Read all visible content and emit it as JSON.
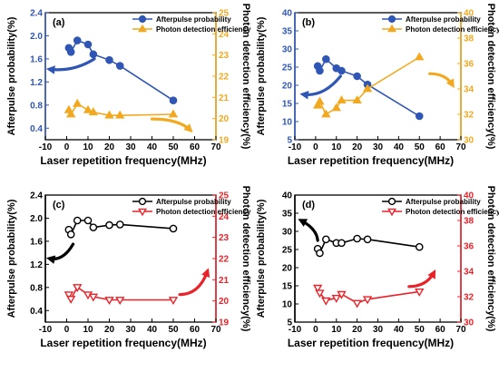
{
  "chart_data": [
    {
      "type": "line",
      "panel_label": "(a)",
      "xlabel": "Laser  repetition frequency(MHz)",
      "xlim": [
        -10,
        70
      ],
      "xticks": [
        "-10",
        "0",
        "10",
        "20",
        "30",
        "40",
        "50",
        "60",
        "70"
      ],
      "left_axis": {
        "label": "Afterpulse probability(%)",
        "lim": [
          0.2,
          2.4
        ],
        "ticks": [
          "0.4",
          "0.8",
          "1.2",
          "1.6",
          "2.0",
          "2.4"
        ],
        "color": "#2f56b5"
      },
      "right_axis": {
        "label": "Photon detection efficiency(%)",
        "lim": [
          19,
          25
        ],
        "ticks": [
          "19",
          "20",
          "21",
          "22",
          "23",
          "24",
          "25"
        ],
        "color": "#f2a91f"
      },
      "series": [
        {
          "name": "Afterpulse probability",
          "axis": "left",
          "marker": "circle",
          "filled": true,
          "color": "#2f56b5",
          "x": [
            1,
            2,
            5,
            10,
            12.5,
            20,
            25,
            50
          ],
          "y": [
            1.79,
            1.72,
            1.92,
            1.85,
            1.68,
            1.58,
            1.48,
            0.88
          ]
        },
        {
          "name": "Photon detection efficiency",
          "axis": "right",
          "marker": "triangle-up",
          "filled": true,
          "color": "#f2a91f",
          "x": [
            1,
            2,
            5,
            10,
            12.5,
            20,
            25,
            50
          ],
          "y": [
            20.4,
            20.2,
            20.7,
            20.4,
            20.3,
            20.15,
            20.15,
            20.2
          ]
        }
      ],
      "annotations": [
        {
          "type": "curved-arrow",
          "direction": "left",
          "color": "#2f56b5",
          "from": [
            13,
            1.6
          ],
          "to": [
            -8,
            1.42
          ]
        },
        {
          "type": "curved-arrow",
          "direction": "right",
          "color": "#f2a91f",
          "from": [
            40,
            19.98
          ],
          "to": [
            58,
            19.45
          ]
        }
      ],
      "grid": false,
      "legend": "top-right"
    },
    {
      "type": "line",
      "panel_label": "(b)",
      "xlabel": "Laser  repetition frequency(MHz)",
      "xlim": [
        -10,
        70
      ],
      "xticks": [
        "-10",
        "0",
        "10",
        "20",
        "30",
        "40",
        "50",
        "60",
        "70"
      ],
      "left_axis": {
        "label": "Afterpulse probability(%)",
        "lim": [
          5,
          40
        ],
        "ticks": [
          "5",
          "10",
          "15",
          "20",
          "25",
          "30",
          "35",
          "40"
        ],
        "color": "#2f56b5"
      },
      "right_axis": {
        "label": "Photon detection efficiency(%)",
        "lim": [
          30,
          40
        ],
        "ticks": [
          "30",
          "32",
          "34",
          "36",
          "38",
          "40"
        ],
        "color": "#f2a91f"
      },
      "series": [
        {
          "name": "Afterpulse probability",
          "axis": "left",
          "marker": "circle",
          "filled": true,
          "color": "#2f56b5",
          "x": [
            1,
            2,
            5,
            10,
            12.5,
            20,
            25,
            50
          ],
          "y": [
            25.3,
            24,
            27.2,
            24.7,
            24,
            22.5,
            20.2,
            11.5
          ]
        },
        {
          "name": "Photon detection efficiency",
          "axis": "right",
          "marker": "triangle-up",
          "filled": true,
          "color": "#f2a91f",
          "x": [
            1,
            2,
            5,
            10,
            12.5,
            20,
            25,
            50
          ],
          "y": [
            32.7,
            33,
            32,
            32.5,
            33.1,
            33.1,
            34,
            36.5
          ]
        }
      ],
      "annotations": [
        {
          "type": "curved-arrow",
          "direction": "left",
          "color": "#2f56b5",
          "from": [
            12,
            22.5
          ],
          "to": [
            -6,
            17.5
          ]
        },
        {
          "type": "curved-arrow",
          "direction": "right",
          "color": "#f2a91f",
          "from": [
            55,
            35.2
          ],
          "to": [
            66,
            34.3
          ]
        }
      ],
      "grid": false,
      "legend": "top-right"
    },
    {
      "type": "line",
      "panel_label": "(c)",
      "xlabel": "Laser  repetition frequency(MHz)",
      "xlim": [
        -10,
        70
      ],
      "xticks": [
        "-10",
        "0",
        "10",
        "20",
        "30",
        "40",
        "50",
        "60",
        "70"
      ],
      "left_axis": {
        "label": "Afterpulse probability(%)",
        "lim": [
          0.2,
          2.4
        ],
        "ticks": [
          "0.4",
          "0.8",
          "1.2",
          "1.6",
          "2.0",
          "2.4"
        ],
        "color": "#000000"
      },
      "right_axis": {
        "label": "Photon detection efficiency(%)",
        "lim": [
          19,
          25
        ],
        "ticks": [
          "19",
          "20",
          "21",
          "22",
          "23",
          "24",
          "25"
        ],
        "color": "#e8232a"
      },
      "series": [
        {
          "name": "Afterpulse probability",
          "axis": "left",
          "marker": "circle",
          "filled": false,
          "color": "#000000",
          "x": [
            1,
            2,
            5,
            10,
            12.5,
            20,
            25,
            50
          ],
          "y": [
            1.8,
            1.72,
            1.96,
            1.96,
            1.84,
            1.88,
            1.89,
            1.82
          ]
        },
        {
          "name": "Photon detection efficiency",
          "axis": "right",
          "marker": "triangle-down",
          "filled": false,
          "color": "#e8232a",
          "x": [
            1,
            2,
            5,
            10,
            12.5,
            20,
            25,
            50
          ],
          "y": [
            20.3,
            20.1,
            20.65,
            20.3,
            20.2,
            20.05,
            20.05,
            20.05
          ]
        }
      ],
      "annotations": [
        {
          "type": "curved-arrow",
          "direction": "left",
          "color": "#000000",
          "from": [
            3,
            1.55
          ],
          "to": [
            -8,
            1.3
          ]
        },
        {
          "type": "curved-arrow",
          "direction": "right",
          "color": "#e8232a",
          "from": [
            53,
            20.3
          ],
          "to": [
            66,
            21.4
          ]
        }
      ],
      "grid": false,
      "legend": "top-right"
    },
    {
      "type": "line",
      "panel_label": "(d)",
      "xlabel": "Laser  repetition frequency(MHz)",
      "xlim": [
        -10,
        70
      ],
      "xticks": [
        "-10",
        "0",
        "10",
        "20",
        "30",
        "40",
        "50",
        "60",
        "70"
      ],
      "left_axis": {
        "label": "Afterpulse probability(%)",
        "lim": [
          5,
          40
        ],
        "ticks": [
          "5",
          "10",
          "15",
          "20",
          "25",
          "30",
          "35",
          "40"
        ],
        "color": "#000000"
      },
      "right_axis": {
        "label": "Photon detection efficiency(%)",
        "lim": [
          30,
          40
        ],
        "ticks": [
          "30",
          "32",
          "34",
          "36",
          "38",
          "40"
        ],
        "color": "#e8232a"
      },
      "series": [
        {
          "name": "Afterpulse probability",
          "axis": "left",
          "marker": "circle",
          "filled": false,
          "color": "#000000",
          "x": [
            1,
            2,
            5,
            10,
            12.5,
            20,
            25,
            50
          ],
          "y": [
            25.2,
            24,
            27.8,
            26.8,
            26.8,
            28,
            27.8,
            25.7
          ]
        },
        {
          "name": "Photon detection efficiency",
          "axis": "right",
          "marker": "triangle-down",
          "filled": false,
          "color": "#e8232a",
          "x": [
            1,
            2,
            5,
            10,
            12.5,
            20,
            25,
            50
          ],
          "y": [
            32.7,
            32.3,
            31.7,
            31.9,
            32.2,
            31.5,
            31.8,
            32.4
          ]
        }
      ],
      "annotations": [
        {
          "type": "curved-arrow",
          "direction": "up",
          "color": "#000000",
          "from": [
            1,
            27.5
          ],
          "to": [
            -7,
            33
          ]
        },
        {
          "type": "curved-arrow",
          "direction": "right",
          "color": "#e8232a",
          "from": [
            45,
            32.8
          ],
          "to": [
            57,
            33.9
          ]
        }
      ],
      "grid": false,
      "legend": "top-right"
    }
  ]
}
